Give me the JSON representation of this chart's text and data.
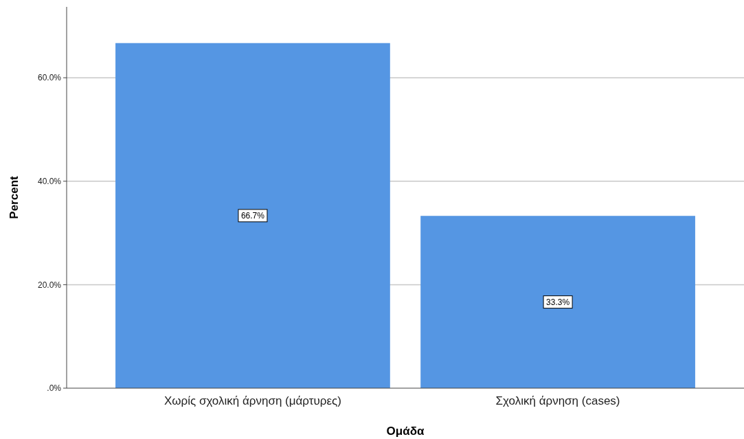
{
  "chart_data": {
    "type": "bar",
    "categories": [
      "Χωρίς σχολική άρνηση (μάρτυρες)",
      "Σχολική άρνηση (cases)"
    ],
    "values": [
      66.7,
      33.3
    ],
    "value_labels": [
      "66.7%",
      "33.3%"
    ],
    "color": "#5596e3",
    "xlabel": "Ομάδα",
    "ylabel": "Percent",
    "ylim": [
      0,
      73.7
    ],
    "yticks": [
      {
        "value": 0,
        "label": ".0%"
      },
      {
        "value": 20,
        "label": "20.0%"
      },
      {
        "value": 40,
        "label": "40.0%"
      },
      {
        "value": 60,
        "label": "60.0%"
      }
    ],
    "grid": "y"
  }
}
